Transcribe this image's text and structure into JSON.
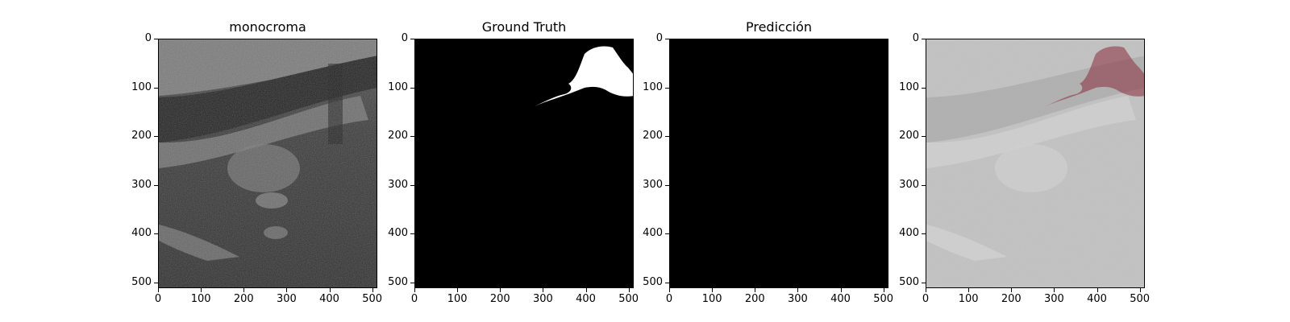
{
  "figure": {
    "panels": [
      {
        "id": "image",
        "title": "monocroma",
        "content": "grayscale-ultrasound"
      },
      {
        "id": "truth",
        "title": "Ground Truth",
        "content": "binary-mask"
      },
      {
        "id": "pred",
        "title": "Predicción",
        "content": "empty-mask"
      },
      {
        "id": "overlay",
        "title": "",
        "content": "overlay"
      }
    ],
    "yticks": [
      "0",
      "100",
      "200",
      "300",
      "400",
      "500"
    ],
    "xticks": [
      "0",
      "100",
      "200",
      "300",
      "400",
      "500"
    ],
    "colors": {
      "mask": "#ffffff",
      "background": "#000000",
      "overlay": "#8b2b3c"
    }
  }
}
